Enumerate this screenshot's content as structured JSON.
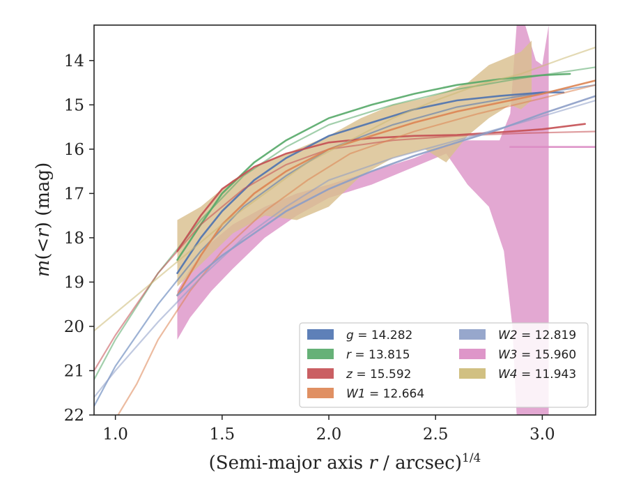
{
  "chart_data": {
    "type": "line",
    "xlabel": "(Semi-major axis r / arcsec)^1/4",
    "ylabel": "m(<r) (mag)",
    "xlim": [
      0.9,
      3.25
    ],
    "ylim": [
      22,
      13.2
    ],
    "y_inverted": true,
    "grid": false,
    "legend_position": "lower-right",
    "legend_columns": 2,
    "x_ticks": [
      "1.0",
      "1.5",
      "2.0",
      "2.5",
      "3.0"
    ],
    "y_ticks": [
      "14",
      "15",
      "16",
      "17",
      "18",
      "19",
      "20",
      "21",
      "22"
    ],
    "series": [
      {
        "name": "g = 14.282",
        "color": "#4c72b0",
        "data_line": {
          "x": [
            1.29,
            1.4,
            1.5,
            1.65,
            1.8,
            2.0,
            2.2,
            2.4,
            2.6,
            2.8,
            3.0,
            3.1
          ],
          "y": [
            18.8,
            18.0,
            17.4,
            16.7,
            16.2,
            15.7,
            15.4,
            15.1,
            14.9,
            14.8,
            14.72,
            14.72
          ]
        },
        "model_line": {
          "x": [
            0.9,
            1.0,
            1.2,
            1.4,
            1.6,
            1.8,
            2.0,
            2.3,
            2.6,
            2.9,
            3.25
          ],
          "y": [
            21.8,
            20.9,
            19.5,
            18.3,
            17.3,
            16.6,
            16.0,
            15.45,
            15.05,
            14.8,
            14.55
          ]
        }
      },
      {
        "name": "r = 13.815",
        "color": "#55a868",
        "data_line": {
          "x": [
            1.29,
            1.4,
            1.5,
            1.65,
            1.8,
            2.0,
            2.2,
            2.4,
            2.6,
            2.8,
            3.0,
            3.13
          ],
          "y": [
            18.5,
            17.7,
            17.0,
            16.3,
            15.8,
            15.3,
            15.0,
            14.75,
            14.55,
            14.42,
            14.33,
            14.3
          ]
        },
        "model_line": {
          "x": [
            0.9,
            1.0,
            1.2,
            1.4,
            1.6,
            1.8,
            2.0,
            2.3,
            2.6,
            2.9,
            3.25
          ],
          "y": [
            21.2,
            20.3,
            18.8,
            17.6,
            16.6,
            15.95,
            15.45,
            15.0,
            14.65,
            14.4,
            14.15
          ]
        }
      },
      {
        "name": "z = 15.592",
        "color": "#c44e52",
        "data_line": {
          "x": [
            1.29,
            1.4,
            1.5,
            1.65,
            1.8,
            2.0,
            2.2,
            2.4,
            2.6,
            2.8,
            3.0,
            3.2
          ],
          "y": [
            18.3,
            17.5,
            16.9,
            16.4,
            16.1,
            15.85,
            15.75,
            15.7,
            15.68,
            15.62,
            15.55,
            15.43
          ]
        },
        "model_line": {
          "x": [
            0.9,
            1.0,
            1.2,
            1.4,
            1.6,
            1.8,
            2.0,
            2.3,
            2.6,
            2.9,
            3.25
          ],
          "y": [
            21.0,
            20.2,
            18.8,
            17.7,
            16.9,
            16.35,
            16.0,
            15.8,
            15.7,
            15.64,
            15.6
          ]
        }
      },
      {
        "name": "W1 = 12.664",
        "color": "#dd8452",
        "data_line": {
          "x": [
            1.29,
            1.4,
            1.5,
            1.65,
            1.8,
            2.0,
            2.2,
            2.4,
            2.6,
            2.8,
            3.0,
            3.25
          ],
          "y": [
            19.3,
            18.4,
            17.7,
            17.0,
            16.5,
            16.0,
            15.7,
            15.4,
            15.15,
            14.95,
            14.75,
            14.45
          ]
        },
        "model_line": {
          "x": [
            1.0,
            1.1,
            1.2,
            1.35,
            1.5,
            1.7,
            1.9,
            2.1,
            2.4,
            2.7,
            3.0,
            3.25
          ],
          "y": [
            22.1,
            21.3,
            20.3,
            19.2,
            18.3,
            17.4,
            16.7,
            16.1,
            15.6,
            15.2,
            14.85,
            14.55
          ]
        }
      },
      {
        "name": "W2 = 12.819",
        "color": "#8c9dc7",
        "data_line": {
          "x": [
            1.29,
            1.4,
            1.5,
            1.65,
            1.8,
            2.0,
            2.2,
            2.4,
            2.6,
            2.8,
            3.0,
            3.25
          ],
          "y": [
            19.3,
            18.8,
            18.4,
            17.9,
            17.4,
            16.9,
            16.5,
            16.15,
            15.85,
            15.55,
            15.2,
            14.8
          ]
        },
        "model_line": {
          "x": [
            0.9,
            1.0,
            1.2,
            1.4,
            1.6,
            1.8,
            2.0,
            2.3,
            2.6,
            2.9,
            3.25
          ],
          "y": [
            21.6,
            21.0,
            19.9,
            18.9,
            18.0,
            17.3,
            16.7,
            16.2,
            15.8,
            15.4,
            14.9
          ]
        }
      },
      {
        "name": "W3 = 15.960",
        "color": "#da8bc3",
        "data_line": {
          "x": [
            2.85,
            2.95,
            3.05,
            3.25
          ],
          "y": [
            15.95,
            15.95,
            15.95,
            15.95
          ]
        }
      },
      {
        "name": "W4 = 11.943",
        "color": "#ccb974",
        "data_line": {
          "x": [
            0.9,
            1.1,
            1.3,
            1.5,
            1.7,
            1.9,
            2.1,
            2.3,
            2.5,
            2.7,
            2.9,
            3.1,
            3.25
          ],
          "y": [
            20.1,
            19.3,
            18.5,
            17.7,
            17.0,
            16.3,
            15.8,
            15.3,
            14.9,
            14.55,
            14.3,
            13.95,
            13.7
          ]
        }
      }
    ],
    "bands": [
      {
        "series": "W3 = 15.960",
        "color": "#da8bc3",
        "opacity": 0.75,
        "upper": {
          "x": [
            1.29,
            1.35,
            1.45,
            1.55,
            1.7,
            1.85,
            2.0,
            2.2,
            2.4,
            2.55,
            2.65,
            2.8,
            2.85,
            2.88,
            2.92,
            2.97,
            3.0,
            3.03
          ],
          "y": [
            19.2,
            18.7,
            18.1,
            17.7,
            17.3,
            17.0,
            16.8,
            16.5,
            16.2,
            15.9,
            15.8,
            15.8,
            15.2,
            13.2,
            13.2,
            14.0,
            14.1,
            13.2
          ]
        },
        "lower": {
          "x": [
            1.29,
            1.35,
            1.45,
            1.55,
            1.7,
            1.85,
            2.0,
            2.2,
            2.4,
            2.55,
            2.65,
            2.75,
            2.82,
            2.86,
            2.88,
            3.0,
            3.03
          ],
          "y": [
            20.3,
            19.8,
            19.2,
            18.7,
            18.0,
            17.5,
            17.1,
            16.8,
            16.4,
            16.1,
            16.8,
            17.3,
            18.3,
            20.0,
            22.0,
            22.0,
            22.0
          ]
        }
      },
      {
        "series": "W4 = 11.943",
        "color": "#d9bf8f",
        "opacity": 0.82,
        "upper": {
          "x": [
            1.29,
            1.4,
            1.55,
            1.7,
            1.85,
            2.0,
            2.15,
            2.3,
            2.45,
            2.55,
            2.65,
            2.75,
            2.85,
            2.9,
            2.95
          ],
          "y": [
            17.6,
            17.3,
            16.7,
            16.3,
            16.0,
            15.7,
            15.3,
            15.0,
            14.85,
            14.7,
            14.5,
            14.1,
            13.9,
            13.8,
            13.55
          ]
        },
        "lower": {
          "x": [
            1.29,
            1.4,
            1.55,
            1.7,
            1.85,
            2.0,
            2.15,
            2.3,
            2.45,
            2.55,
            2.65,
            2.75,
            2.85,
            2.9,
            2.95
          ],
          "y": [
            19.1,
            18.6,
            17.9,
            17.5,
            17.6,
            17.3,
            16.6,
            16.2,
            16.0,
            16.3,
            15.7,
            15.3,
            15.0,
            15.1,
            14.9
          ]
        }
      }
    ]
  }
}
